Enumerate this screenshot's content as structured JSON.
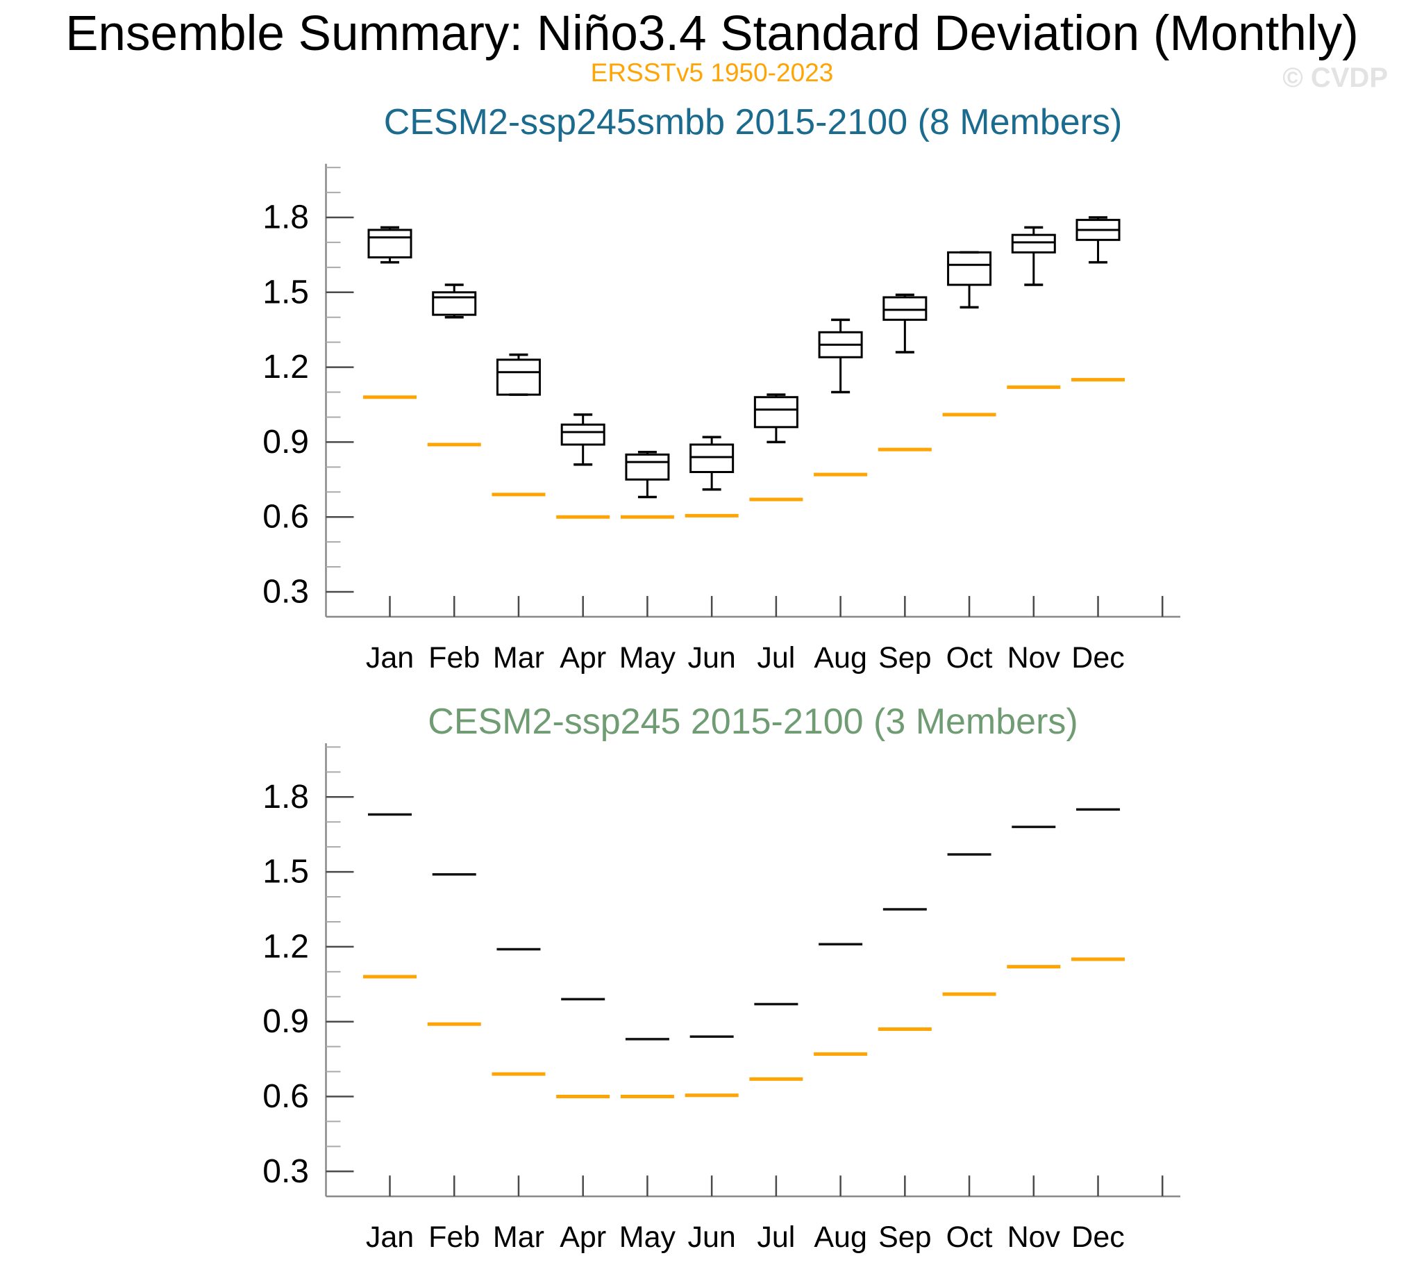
{
  "page": {
    "main_title": "Ensemble Summary: Niño3.4 Standard Deviation (Monthly)",
    "subtitle": "ERSSTv5 1950-2023",
    "watermark": "© CVDP"
  },
  "colors": {
    "obs_orange": "#FFA405",
    "panel1_title_teal": "#1B6B8F",
    "panel2_title_green": "#6F9C73",
    "watermark_gray": "#E3E3E3",
    "box_black": "#000000",
    "axis_gray": "#888888",
    "major_tick": "#4a4a4a",
    "minor_tick": "#aaaaaa"
  },
  "chart_data": [
    {
      "type": "box",
      "title": "CESM2-ssp245smbb 2015-2100 (8 Members)",
      "categories": [
        "Jan",
        "Feb",
        "Mar",
        "Apr",
        "May",
        "Jun",
        "Jul",
        "Aug",
        "Sep",
        "Oct",
        "Nov",
        "Dec"
      ],
      "ylim": [
        0.2,
        2.015
      ],
      "yticks_major": [
        0.3,
        0.6,
        0.9,
        1.2,
        1.5,
        1.8
      ],
      "minor_tick_step": 0.1,
      "grid": false,
      "legend": "none",
      "boxes": [
        {
          "min": 1.62,
          "q1": 1.64,
          "med": 1.72,
          "q3": 1.75,
          "max": 1.76
        },
        {
          "min": 1.4,
          "q1": 1.41,
          "med": 1.48,
          "q3": 1.5,
          "max": 1.53
        },
        {
          "min": 1.09,
          "q1": 1.09,
          "med": 1.18,
          "q3": 1.23,
          "max": 1.25
        },
        {
          "min": 0.81,
          "q1": 0.89,
          "med": 0.94,
          "q3": 0.97,
          "max": 1.01
        },
        {
          "min": 0.68,
          "q1": 0.75,
          "med": 0.82,
          "q3": 0.85,
          "max": 0.86
        },
        {
          "min": 0.71,
          "q1": 0.78,
          "med": 0.84,
          "q3": 0.89,
          "max": 0.92
        },
        {
          "min": 0.9,
          "q1": 0.96,
          "med": 1.03,
          "q3": 1.08,
          "max": 1.09
        },
        {
          "min": 1.1,
          "q1": 1.24,
          "med": 1.29,
          "q3": 1.34,
          "max": 1.39
        },
        {
          "min": 1.26,
          "q1": 1.39,
          "med": 1.43,
          "q3": 1.48,
          "max": 1.49
        },
        {
          "min": 1.44,
          "q1": 1.53,
          "med": 1.61,
          "q3": 1.66,
          "max": 1.66
        },
        {
          "min": 1.53,
          "q1": 1.66,
          "med": 1.7,
          "q3": 1.73,
          "max": 1.76
        },
        {
          "min": 1.62,
          "q1": 1.71,
          "med": 1.75,
          "q3": 1.79,
          "max": 1.8
        }
      ],
      "obs_series_name": "ERSSTv5 1950-2023",
      "obs": [
        1.08,
        0.89,
        0.69,
        0.6,
        0.6,
        0.605,
        0.67,
        0.77,
        0.87,
        1.01,
        1.12,
        1.15
      ]
    },
    {
      "type": "dash",
      "title": "CESM2-ssp245 2015-2100 (3 Members)",
      "categories": [
        "Jan",
        "Feb",
        "Mar",
        "Apr",
        "May",
        "Jun",
        "Jul",
        "Aug",
        "Sep",
        "Oct",
        "Nov",
        "Dec"
      ],
      "ylim": [
        0.2,
        2.015
      ],
      "yticks_major": [
        0.3,
        0.6,
        0.9,
        1.2,
        1.5,
        1.8
      ],
      "minor_tick_step": 0.1,
      "grid": false,
      "legend": "none",
      "values": [
        1.73,
        1.49,
        1.19,
        0.99,
        0.83,
        0.84,
        0.97,
        1.21,
        1.35,
        1.57,
        1.68,
        1.75
      ],
      "obs_series_name": "ERSSTv5 1950-2023",
      "obs": [
        1.08,
        0.89,
        0.69,
        0.6,
        0.6,
        0.605,
        0.67,
        0.77,
        0.87,
        1.01,
        1.12,
        1.15
      ]
    }
  ]
}
